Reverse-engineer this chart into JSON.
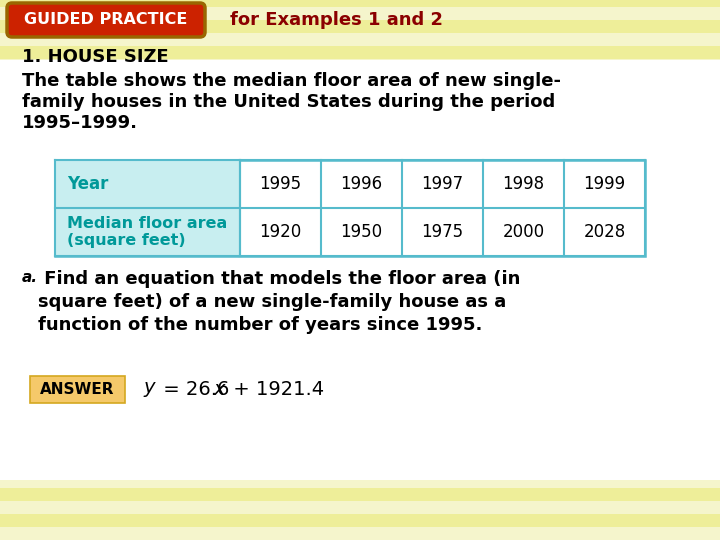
{
  "bg_color": "#f5f5d8",
  "stripe_color_light": "#f5f5c8",
  "stripe_color_dark": "#e8e8aa",
  "header_box_color": "#cc2200",
  "header_box_edge": "#996600",
  "header_box_text": "GUIDED PRACTICE",
  "header_subtitle": "for Examples 1 and 2",
  "header_subtitle_color": "#8b0000",
  "section_number": "1.",
  "section_title": " HOUSE SIZE",
  "body_line1": "The table shows the median floor area of new single-",
  "body_line2": "family houses in the United States during the period",
  "body_line3": "1995–1999.",
  "table_header_bg": "#c8eef0",
  "table_header_text_color": "#009999",
  "table_border_color": "#55bbcc",
  "table_row1_label": "Year",
  "table_row2_label_line1": "Median floor area",
  "table_row2_label_line2": "(square feet)",
  "table_years": [
    "1995",
    "1996",
    "1997",
    "1998",
    "1999"
  ],
  "table_areas": [
    "1920",
    "1950",
    "1975",
    "2000",
    "2028"
  ],
  "part_a_label": "a.",
  "part_a_line1": " Find an equation that models the floor area (in",
  "part_a_line2": "square feet) of a new single-family house as a",
  "part_a_line3": "function of the number of years since 1995.",
  "answer_box_bg": "#f5c96a",
  "answer_box_edge": "#d4a820",
  "answer_label": "ANSWER"
}
